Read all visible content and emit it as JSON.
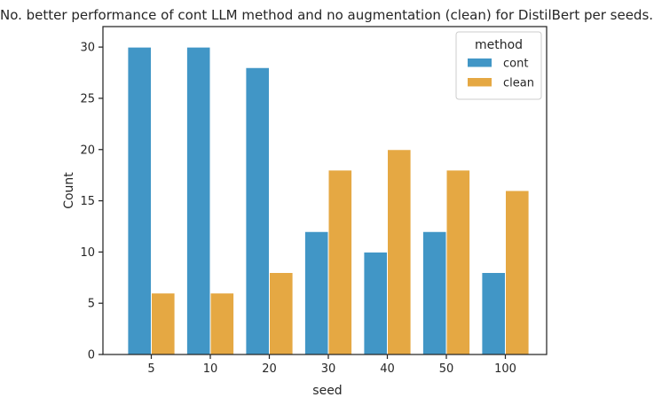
{
  "chart_data": {
    "type": "bar",
    "title": "No. better performance of cont LLM method and no augmentation (clean) for DistilBert per seeds.",
    "xlabel": "seed",
    "ylabel": "Count",
    "categories": [
      "5",
      "10",
      "20",
      "30",
      "40",
      "50",
      "100"
    ],
    "series": [
      {
        "name": "cont",
        "values": [
          30,
          30,
          28,
          12,
          10,
          12,
          8
        ],
        "color": "#4196c6"
      },
      {
        "name": "clean",
        "values": [
          6,
          6,
          8,
          18,
          20,
          18,
          16
        ],
        "color": "#e5a843"
      }
    ],
    "ylim": [
      0,
      32
    ],
    "yticks": [
      0,
      5,
      10,
      15,
      20,
      25,
      30
    ],
    "grid": false,
    "legend": {
      "title": "method",
      "placement": "top-right"
    }
  }
}
